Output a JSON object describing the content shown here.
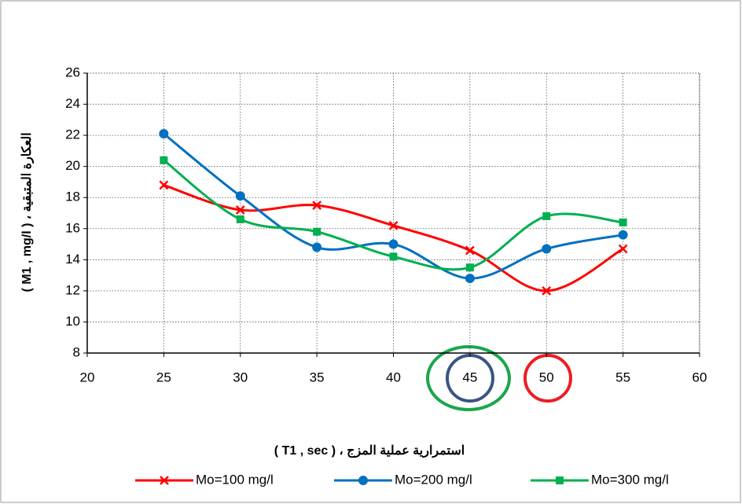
{
  "chart_data": {
    "type": "line",
    "x_label": "استمرارية عملية المزج ، ( T1 , sec )",
    "y_label": "العكارة المتبقية ، ( M1 , mg/l )",
    "x": [
      25,
      30,
      35,
      40,
      45,
      50,
      55
    ],
    "series": [
      {
        "name": "Mo=100 mg/l",
        "color": "#ff0000",
        "marker": "x",
        "values": [
          18.8,
          17.2,
          17.5,
          16.2,
          14.6,
          12.0,
          14.7
        ]
      },
      {
        "name": "Mo=200 mg/l",
        "color": "#0070c0",
        "marker": "circle",
        "values": [
          22.1,
          18.1,
          14.8,
          15.0,
          12.8,
          14.7,
          15.6
        ]
      },
      {
        "name": "Mo=300 mg/l",
        "color": "#00b050",
        "marker": "square",
        "values": [
          20.4,
          16.6,
          15.8,
          14.2,
          13.5,
          16.8,
          16.4
        ]
      }
    ],
    "xlim": [
      20,
      60
    ],
    "xticks": [
      20,
      25,
      30,
      35,
      40,
      45,
      50,
      55,
      60
    ],
    "ylim": [
      8,
      26
    ],
    "yticks": [
      8,
      10,
      12,
      14,
      16,
      18,
      20,
      22,
      24,
      26
    ],
    "grid": true,
    "smooth": true,
    "legend": "bottom"
  }
}
